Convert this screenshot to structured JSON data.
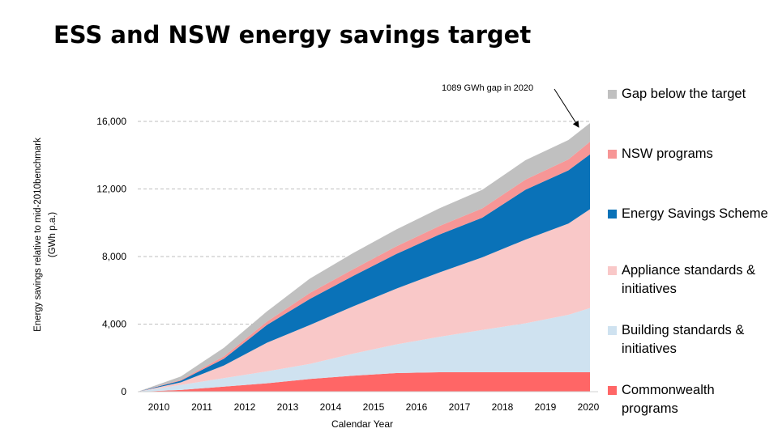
{
  "chart_data": {
    "type": "area",
    "title": "ESS and NSW energy savings target",
    "xlabel": "Calendar Year",
    "ylabel": "Energy savings relative to mid-2010benchmark",
    "ylabel_unit": "(GWh p.a.)",
    "x": [
      2009.5,
      2010.5,
      2011.5,
      2012.5,
      2013.5,
      2014.5,
      2015.5,
      2016.5,
      2017.5,
      2018.5,
      2019.5,
      2020.0
    ],
    "x_ticks": [
      "2010",
      "2011",
      "2012",
      "2013",
      "2014",
      "2015",
      "2016",
      "2017",
      "2018",
      "2019",
      "2020"
    ],
    "y_ticks": [
      "0",
      "4,000",
      "8,000",
      "12,000",
      "16,000"
    ],
    "ylim": [
      0,
      16000
    ],
    "grid": "horizontal dashed",
    "legend_position": "right",
    "series": [
      {
        "name": "Commonwealth programs",
        "color": "#ff6666",
        "values": [
          0,
          100,
          300,
          500,
          750,
          950,
          1100,
          1150,
          1150,
          1150,
          1150,
          1150
        ]
      },
      {
        "name": "Building standards & initiatives",
        "color": "#cfe2f0",
        "values": [
          0,
          300,
          500,
          700,
          900,
          1300,
          1700,
          2100,
          2500,
          2900,
          3400,
          3800
        ]
      },
      {
        "name": "Appliance standards & initiatives",
        "color": "#f9c8c8",
        "values": [
          0,
          150,
          750,
          1700,
          2300,
          2800,
          3300,
          3800,
          4300,
          4950,
          5400,
          5850
        ]
      },
      {
        "name": "Energy Savings Scheme",
        "color": "#0a72b8",
        "values": [
          0,
          100,
          400,
          1050,
          1550,
          1800,
          2050,
          2250,
          2350,
          2950,
          3150,
          3250
        ]
      },
      {
        "name": "NSW programs",
        "color": "#f79696",
        "values": [
          0,
          50,
          150,
          200,
          350,
          400,
          450,
          500,
          550,
          600,
          650,
          750
        ]
      },
      {
        "name": "Gap below the target",
        "color": "#c0c0c0",
        "values": [
          0,
          200,
          500,
          600,
          850,
          950,
          1000,
          1050,
          1100,
          1150,
          1150,
          1100
        ]
      }
    ],
    "annotation": "1089  GWh gap in 2020"
  },
  "legend_order": [
    5,
    4,
    3,
    2,
    1,
    0
  ]
}
